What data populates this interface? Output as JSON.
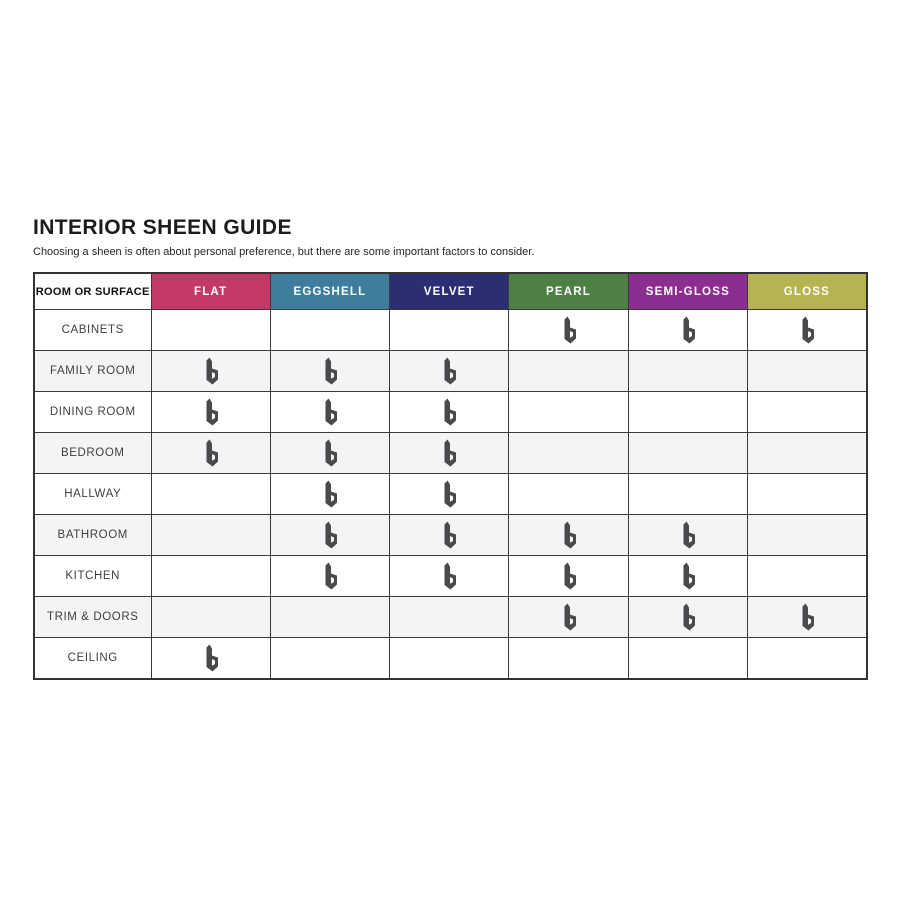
{
  "page": {
    "title": "INTERIOR SHEEN GUIDE",
    "subtitle": "Choosing a sheen is often about personal preference, but there are some important factors to consider."
  },
  "chart_data": {
    "type": "table",
    "title": "INTERIOR SHEEN GUIDE",
    "corner_header": "ROOM OR SURFACE",
    "icon_name": "brand-b-icon",
    "icon_color": "#4a4a4d",
    "columns": [
      {
        "label": "FLAT",
        "color": "#c33a67"
      },
      {
        "label": "EGGSHELL",
        "color": "#3e7e9c"
      },
      {
        "label": "VELVET",
        "color": "#2b2e72"
      },
      {
        "label": "PEARL",
        "color": "#4e7f44"
      },
      {
        "label": "SEMI-GLOSS",
        "color": "#8c2d92"
      },
      {
        "label": "GLOSS",
        "color": "#b5b352"
      }
    ],
    "rows": [
      {
        "label": "CABINETS",
        "marks": [
          false,
          false,
          false,
          true,
          true,
          true
        ]
      },
      {
        "label": "FAMILY ROOM",
        "marks": [
          true,
          true,
          true,
          false,
          false,
          false
        ]
      },
      {
        "label": "DINING ROOM",
        "marks": [
          true,
          true,
          true,
          false,
          false,
          false
        ]
      },
      {
        "label": "BEDROOM",
        "marks": [
          true,
          true,
          true,
          false,
          false,
          false
        ]
      },
      {
        "label": "HALLWAY",
        "marks": [
          false,
          true,
          true,
          false,
          false,
          false
        ]
      },
      {
        "label": "BATHROOM",
        "marks": [
          false,
          true,
          true,
          true,
          true,
          false
        ]
      },
      {
        "label": "KITCHEN",
        "marks": [
          false,
          true,
          true,
          true,
          true,
          false
        ]
      },
      {
        "label": "TRIM & DOORS",
        "marks": [
          false,
          false,
          false,
          true,
          true,
          true
        ]
      },
      {
        "label": "CEILING",
        "marks": [
          true,
          false,
          false,
          false,
          false,
          false
        ]
      }
    ]
  }
}
